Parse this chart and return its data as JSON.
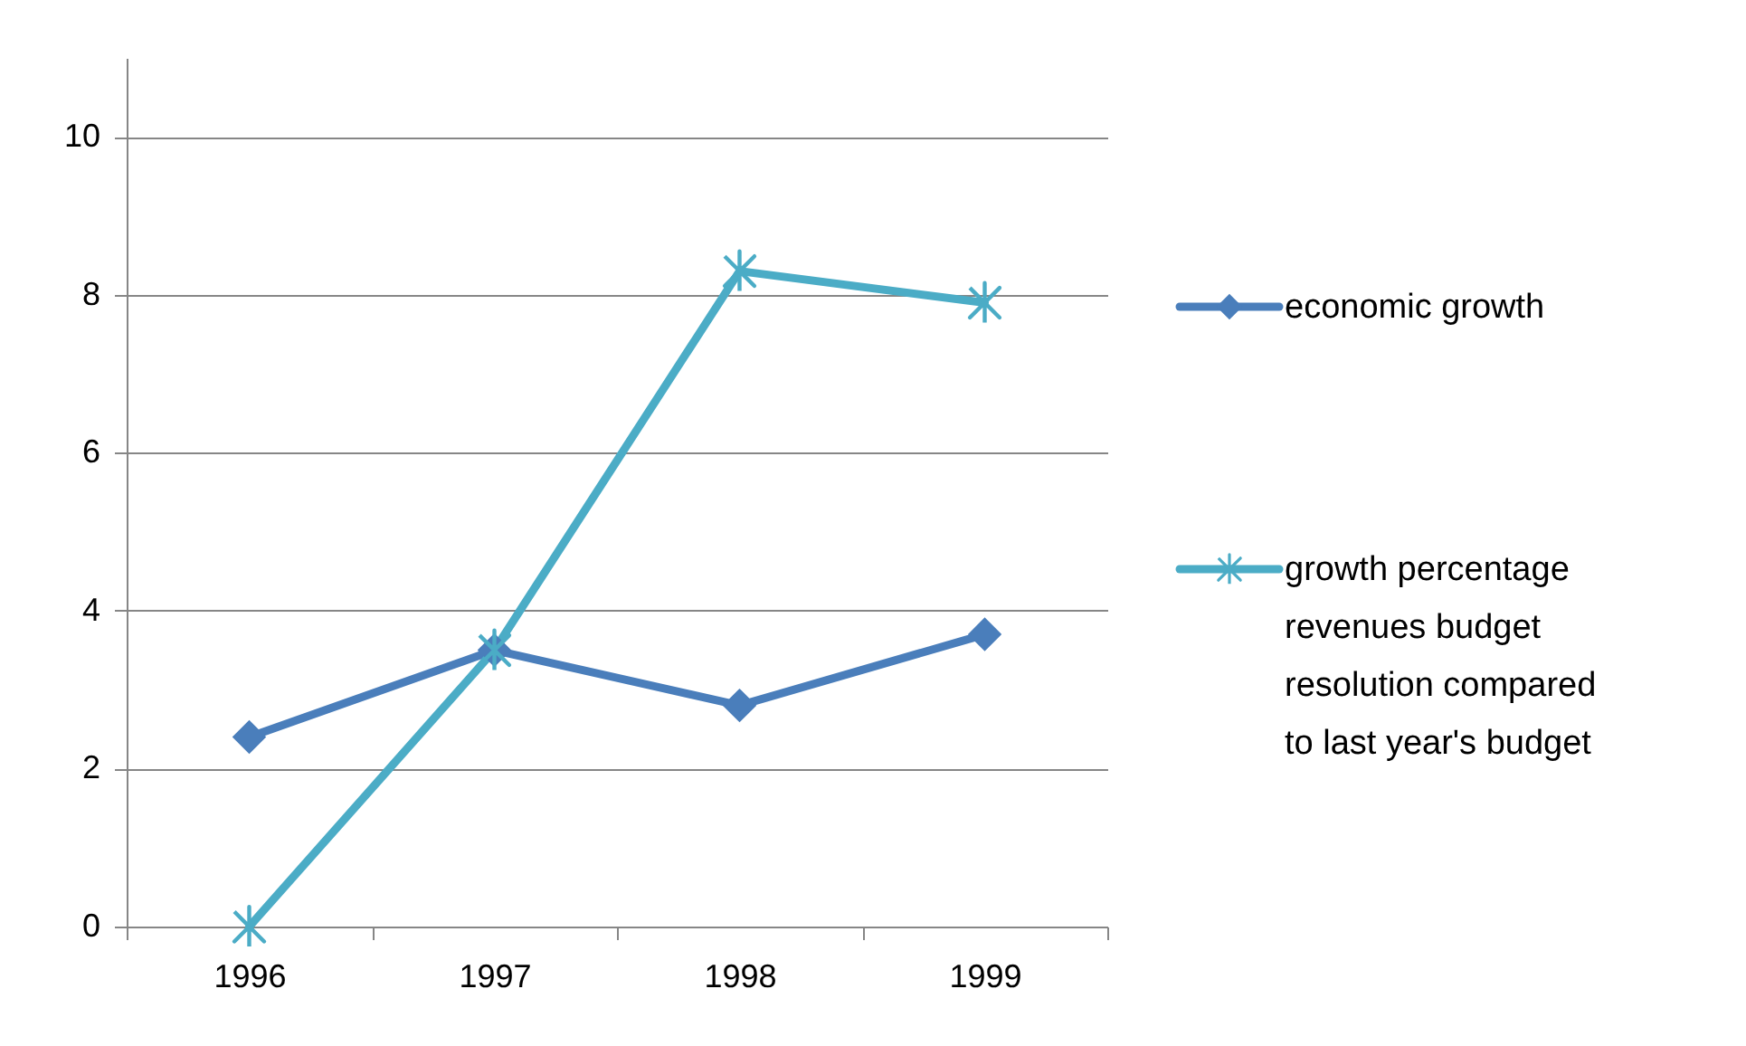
{
  "chart_data": {
    "type": "line",
    "categories": [
      "1996",
      "1997",
      "1998",
      "1999"
    ],
    "series": [
      {
        "name": "economic growth",
        "color": "#4a7ebb",
        "values": [
          2.4,
          3.5,
          2.8,
          3.7
        ],
        "marker": "diamond"
      },
      {
        "name": "growth percentage revenues budget resolution compared to last year's budget",
        "color": "#4bacc6",
        "values": [
          0,
          3.5,
          8.3,
          7.9
        ],
        "marker": "cross"
      }
    ],
    "ylim": [
      0,
      11
    ],
    "yticks": [
      0,
      2,
      4,
      6,
      8,
      10
    ],
    "grid": "y",
    "legend": "right",
    "line_style": "solid"
  }
}
